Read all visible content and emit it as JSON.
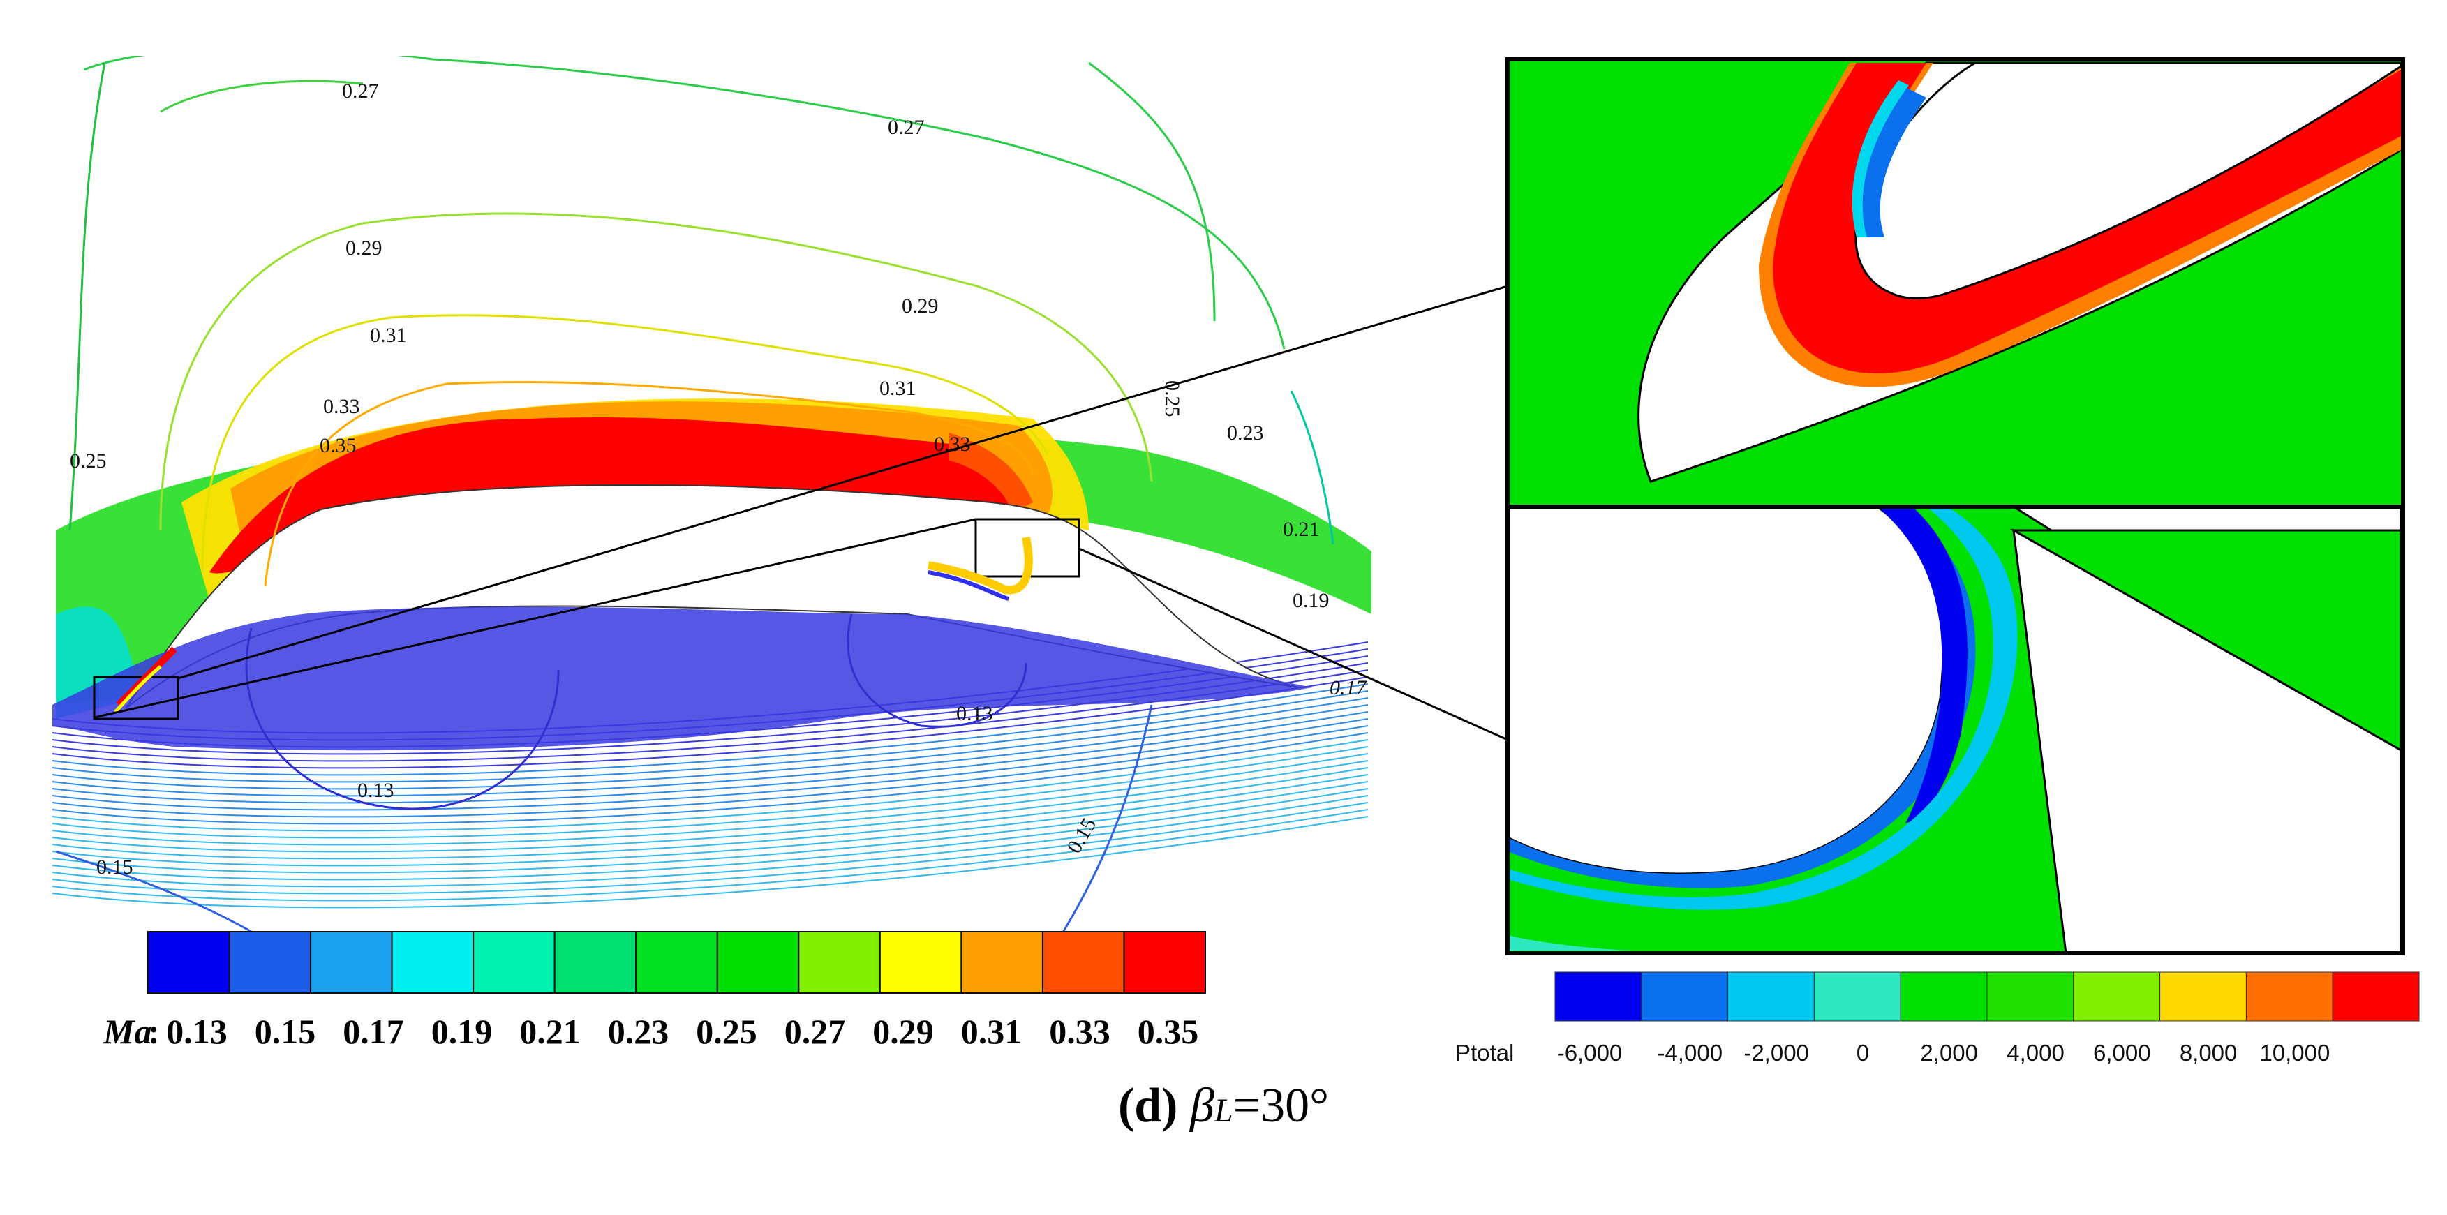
{
  "mach_colorbar": {
    "symbol": "Ma",
    "symbol_suffix": ":",
    "colors": [
      "#0000ee",
      "#1c5ce8",
      "#1aa0ee",
      "#00f0f0",
      "#00f0b0",
      "#00e070",
      "#00e020",
      "#00dd00",
      "#80f000",
      "#ffff00",
      "#ffa000",
      "#ff5000",
      "#ff0000"
    ],
    "tick_labels": [
      "0.13",
      "0.15",
      "0.17",
      "0.19",
      "0.21",
      "0.23",
      "0.25",
      "0.27",
      "0.29",
      "0.31",
      "0.33",
      "0.35"
    ]
  },
  "ptotal_colorbar": {
    "label": "Ptotal",
    "colors": [
      "#0000f0",
      "#0a70ee",
      "#00c8ee",
      "#2ee8c0",
      "#00e000",
      "#20e000",
      "#80f000",
      "#ffd800",
      "#ff7000",
      "#ff0000"
    ],
    "tick_labels": [
      "-6,000",
      "-4,000",
      "-2,000",
      "0",
      "2,000",
      "4,000",
      "6,000",
      "8,000",
      "10,000"
    ]
  },
  "contour_labels": [
    "0.27",
    "0.27",
    "0.29",
    "0.29",
    "0.31",
    "0.31",
    "0.33",
    "0.35",
    "0.33",
    "0.25",
    "0.25",
    "0.23",
    "0.21",
    "0.19",
    "0.17",
    "0.13",
    "0.13",
    "0.15",
    "0.15"
  ],
  "caption": {
    "panel": "(d)",
    "beta": "β",
    "subscript": "L",
    "equals": "=",
    "angle": "30°"
  }
}
